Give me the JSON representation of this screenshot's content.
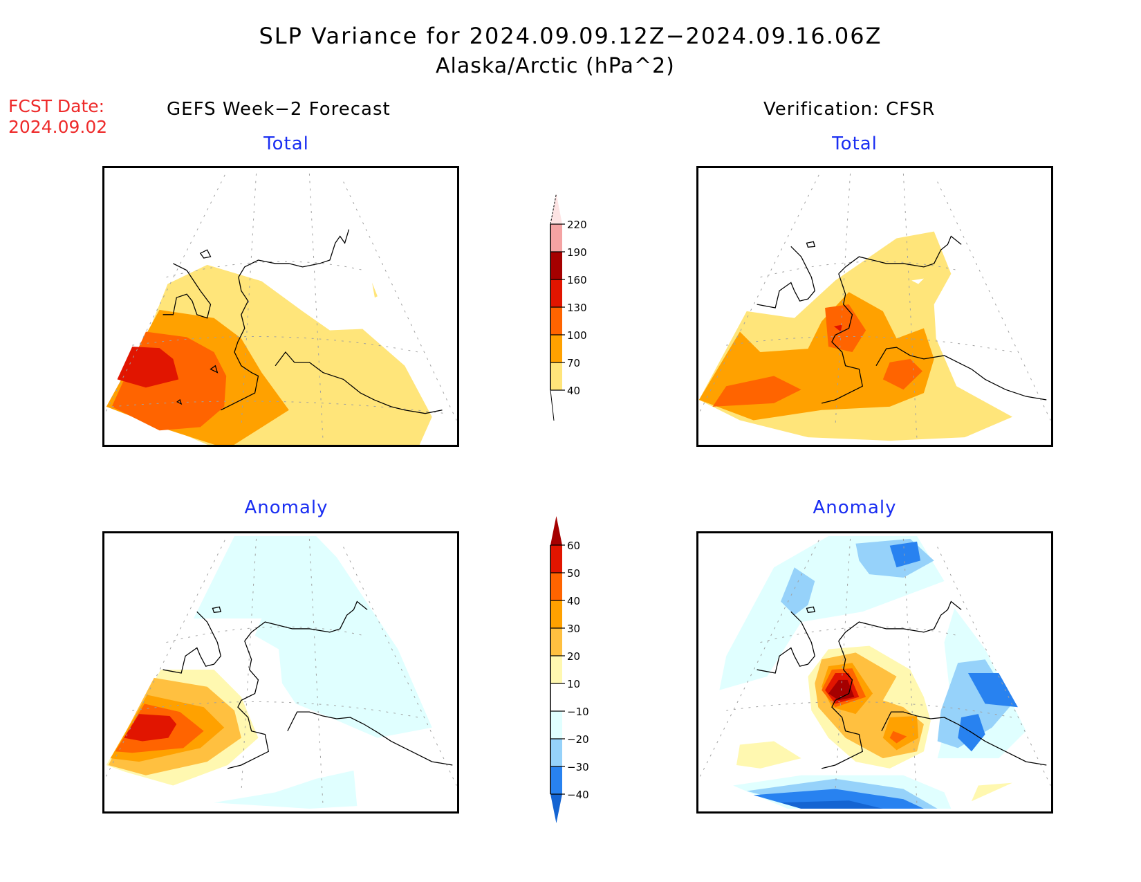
{
  "header": {
    "title": "SLP Variance for 2024.09.09.12Z−2024.09.16.06Z",
    "subtitle": "Alaska/Arctic (hPa^2)",
    "fcst_date_label": "FCST Date:",
    "fcst_date_value": "2024.09.02"
  },
  "columns": {
    "left_heading": "GEFS Week−2 Forecast",
    "right_heading": "Verification: CFSR"
  },
  "panels": {
    "total_label": "Total",
    "anomaly_label": "Anomaly"
  },
  "colors": {
    "fcst_date": "#ee2a2a",
    "panel_label": "#1a2ef2",
    "coastline": "#000000",
    "gridline": "#a0a0a0"
  },
  "chart_data": [
    {
      "type": "heatmap",
      "title": "GEFS Week-2 Forecast — Total",
      "description": "SLP variance, polar stereographic Alaska/Arctic; max (130-160) over western Bering Sea / far east Russia, decreasing eastward; 40-70 band over Alaska Peninsula and Gulf of Alaska",
      "levels": [
        40,
        70,
        100,
        130,
        160,
        190,
        220
      ],
      "max_category": "130-160"
    },
    {
      "type": "heatmap",
      "title": "Verification: CFSR — Total",
      "description": "SLP variance; 100-130 maxima near Bering Strait / western Alaska, SW Bering Sea and Gulf of Alaska; 70-100 broad field; 40-70 extending over Arctic coast and Gulf of Alaska; small 130-160 spot near Norton Sound",
      "levels": [
        40,
        70,
        100,
        130,
        160,
        190,
        220
      ],
      "max_category": "130-160"
    },
    {
      "type": "heatmap",
      "title": "GEFS Week-2 Forecast — Anomaly",
      "description": "SLP variance anomaly; positive 50-60 maximum over far western Bering Sea; weak -10 to -20 negative over Arctic Ocean and interior Alaska / Gulf",
      "levels": [
        -40,
        -30,
        -20,
        -10,
        10,
        20,
        30,
        40,
        50,
        60
      ],
      "max_category": "50-60"
    },
    {
      "type": "heatmap",
      "title": "Verification: CFSR — Anomaly",
      "description": "SLP variance anomaly; >60 maximum near Norton Sound / western Alaska; 40-50 over Bristol Bay region; negatives -30 to -40 over Arctic Ocean north, Canada / Yukon, and south North Pacific",
      "levels": [
        -40,
        -30,
        -20,
        -10,
        10,
        20,
        30,
        40,
        50,
        60
      ],
      "max_category": ">60"
    }
  ],
  "colorbars": {
    "total": {
      "labels": [
        "220",
        "190",
        "160",
        "130",
        "100",
        "70",
        "40"
      ],
      "colors": [
        "#fde3e3",
        "#f4a3a3",
        "#a50000",
        "#e11500",
        "#ff6400",
        "#ffa100",
        "#ffe57a"
      ]
    },
    "anomaly": {
      "labels": [
        "60",
        "50",
        "40",
        "30",
        "20",
        "10",
        "−10",
        "−20",
        "−30",
        "−40"
      ],
      "colors": [
        "#a50000",
        "#e11500",
        "#ff6400",
        "#ffa100",
        "#ffc040",
        "#fff8b0",
        "#ffffff",
        "#e0ffff",
        "#96d2fa",
        "#2882f0",
        "#1464d2"
      ]
    }
  }
}
